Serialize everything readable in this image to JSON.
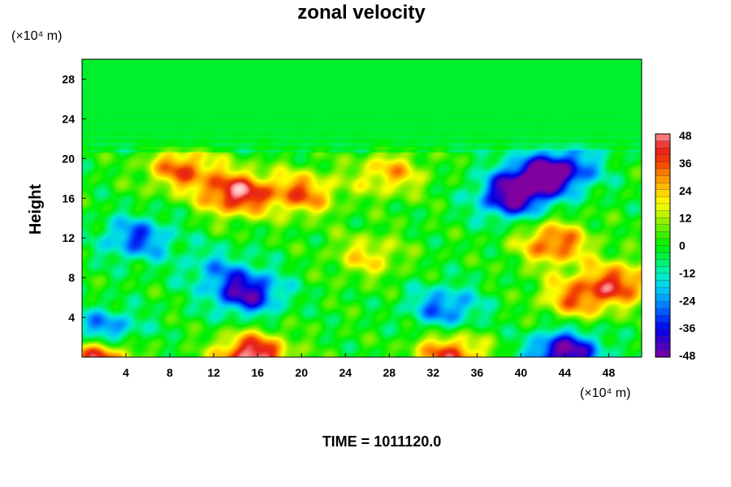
{
  "chart_data": {
    "type": "heatmap",
    "title": "zonal velocity",
    "ylabel": "Height",
    "x_unit_label": "(×10⁴ m)",
    "y_unit_label": "(×10⁴ m)",
    "xlim": [
      0,
      51
    ],
    "ylim": [
      0,
      30
    ],
    "x_ticks": [
      4,
      8,
      12,
      16,
      20,
      24,
      28,
      32,
      36,
      40,
      44,
      48
    ],
    "y_ticks": [
      4,
      8,
      12,
      16,
      20,
      24,
      28
    ],
    "colorbar": {
      "min": -48,
      "max": 48,
      "step": 6,
      "ticks": [
        48,
        36,
        24,
        12,
        0,
        -12,
        -24,
        -36,
        -48
      ]
    },
    "features": [
      {
        "x": 1.5,
        "y": 0.3,
        "value": 48
      },
      {
        "x": 15.5,
        "y": 0.2,
        "value": 50
      },
      {
        "x": 33.5,
        "y": 0.2,
        "value": 38
      },
      {
        "x": 44,
        "y": 0.5,
        "value": -48
      },
      {
        "x": 15,
        "y": 6.5,
        "value": -42
      },
      {
        "x": 2,
        "y": 2.5,
        "value": -36
      },
      {
        "x": 33,
        "y": 5,
        "value": -28
      },
      {
        "x": 45,
        "y": 6,
        "value": 30
      },
      {
        "x": 49,
        "y": 7.5,
        "value": 34
      },
      {
        "x": 43,
        "y": 11.5,
        "value": 36
      },
      {
        "x": 14,
        "y": 16.5,
        "value": 45
      },
      {
        "x": 20,
        "y": 16.5,
        "value": 32
      },
      {
        "x": 9,
        "y": 19,
        "value": 33
      },
      {
        "x": 5,
        "y": 12,
        "value": -30
      },
      {
        "x": 12,
        "y": 9,
        "value": -16
      },
      {
        "x": 41,
        "y": 18,
        "value": -36
      },
      {
        "x": 44,
        "y": 19,
        "value": -34
      },
      {
        "x": 39,
        "y": 16,
        "value": -38
      },
      {
        "x": 26,
        "y": 10.2,
        "value": 20
      },
      {
        "x": 28,
        "y": 18.5,
        "value": 25
      }
    ]
  },
  "footer": {
    "time_label": "TIME = 1011120.0"
  }
}
